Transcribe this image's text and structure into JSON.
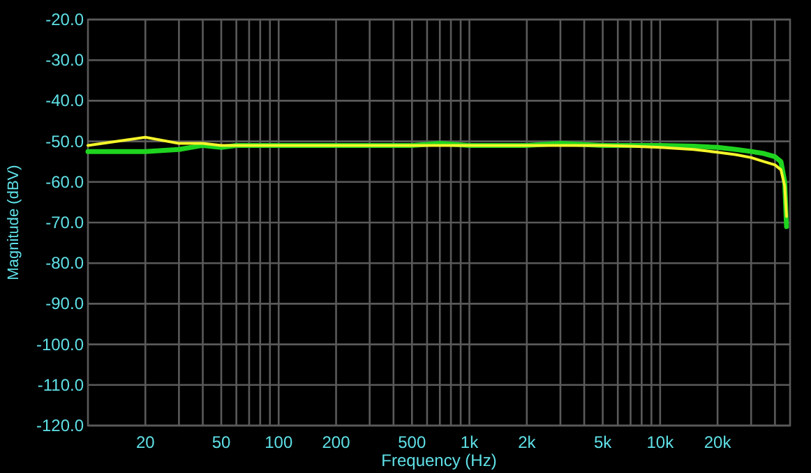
{
  "chart_data": {
    "type": "line",
    "xlabel": "Frequency (Hz)",
    "ylabel": "Magnitude (dBV)",
    "log": "x",
    "grid": true,
    "line_style": "solid",
    "xlim": [
      10,
      48000
    ],
    "ylim": [
      -120,
      -20
    ],
    "xticks": [
      20,
      {
        "value": 30,
        "label": null
      },
      {
        "value": 40,
        "label": null
      },
      50,
      {
        "value": 60,
        "label": null
      },
      {
        "value": 70,
        "label": null
      },
      {
        "value": 80,
        "label": null
      },
      {
        "value": 90,
        "label": null
      },
      100,
      200,
      {
        "value": 300,
        "label": null
      },
      {
        "value": 400,
        "label": null
      },
      500,
      {
        "value": 600,
        "label": null
      },
      {
        "value": 700,
        "label": null
      },
      {
        "value": 800,
        "label": null
      },
      {
        "value": 900,
        "label": null
      },
      {
        "value": 1000,
        "label": "1k"
      },
      {
        "value": 2000,
        "label": "2k"
      },
      {
        "value": 3000,
        "label": null
      },
      {
        "value": 4000,
        "label": null
      },
      {
        "value": 5000,
        "label": "5k"
      },
      {
        "value": 6000,
        "label": null
      },
      {
        "value": 7000,
        "label": null
      },
      {
        "value": 8000,
        "label": null
      },
      {
        "value": 9000,
        "label": null
      },
      {
        "value": 10000,
        "label": "10k"
      },
      {
        "value": 20000,
        "label": "20k"
      },
      {
        "value": 30000,
        "label": null
      },
      {
        "value": 40000,
        "label": null
      }
    ],
    "yticks": [
      {
        "value": -120,
        "label": "-120.0"
      },
      {
        "value": -110,
        "label": "-110.0"
      },
      {
        "value": -100,
        "label": "-100.0"
      },
      {
        "value": -90,
        "label": "-90.0"
      },
      {
        "value": -80,
        "label": "-80.0"
      },
      {
        "value": -70,
        "label": "-70.0"
      },
      {
        "value": -60,
        "label": "-60.0"
      },
      {
        "value": -50,
        "label": "-50.0"
      },
      {
        "value": -40,
        "label": "-40.0"
      },
      {
        "value": -30,
        "label": "-30.0"
      },
      {
        "value": -20,
        "label": "-20.0"
      }
    ],
    "series": [
      {
        "color": "#1fd41f",
        "x": [
          10,
          20,
          30,
          40,
          50,
          60,
          80,
          100,
          200,
          300,
          500,
          700,
          1000,
          1500,
          2000,
          3000,
          5000,
          7000,
          10000,
          15000,
          20000,
          25000,
          30000,
          35000,
          40000,
          43000,
          45000,
          46000
        ],
        "values": [
          -52.5,
          -52.5,
          -52,
          -51,
          -51.5,
          -51,
          -51,
          -51,
          -51,
          -51,
          -51,
          -50.5,
          -51,
          -51,
          -51,
          -50.5,
          -51,
          -51,
          -51,
          -51.2,
          -51.5,
          -52,
          -52.5,
          -53,
          -53.8,
          -55,
          -60,
          -71
        ]
      },
      {
        "color": "#f5f52a",
        "x": [
          10,
          20,
          30,
          40,
          50,
          60,
          80,
          100,
          200,
          300,
          500,
          700,
          1000,
          1500,
          2000,
          3000,
          5000,
          7000,
          10000,
          15000,
          20000,
          25000,
          30000,
          35000,
          40000,
          43000,
          45000,
          46000
        ],
        "values": [
          -51,
          -49,
          -50.5,
          -50.5,
          -51,
          -51,
          -51,
          -51,
          -51,
          -51,
          -51,
          -51,
          -51,
          -51,
          -51,
          -51,
          -51,
          -51.2,
          -51.5,
          -52,
          -52.7,
          -53.3,
          -54,
          -55,
          -55.8,
          -57,
          -61,
          -68.5
        ]
      }
    ]
  }
}
